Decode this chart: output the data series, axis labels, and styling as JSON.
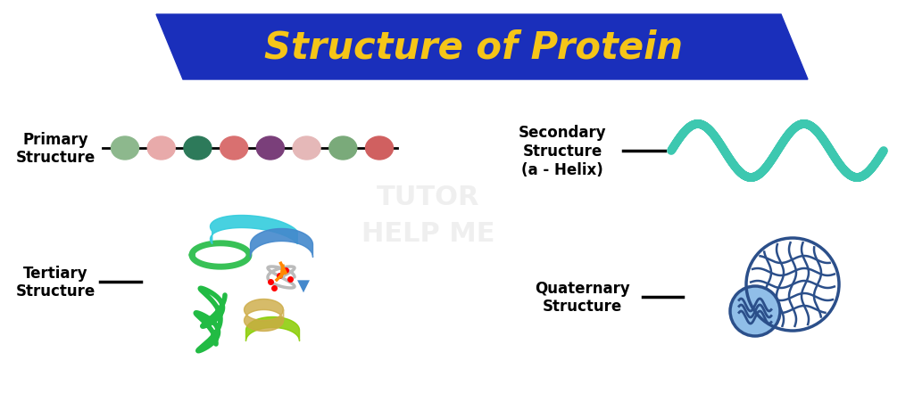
{
  "title": "Structure of Protein",
  "title_color": "#F5C518",
  "title_bg_color": "#1A2FBB",
  "background_color": "#FFFFFF",
  "primary_label": "Primary\nStructure",
  "secondary_label": "Secondary\nStructure\n(a - Helix)",
  "tertiary_label": "Tertiary\nStructure",
  "quaternary_label": "Quaternary\nStructure",
  "bead_colors": [
    "#8DB88D",
    "#E8AAAA",
    "#2D7A5A",
    "#D97070",
    "#7A3F7A",
    "#E5B8B8",
    "#7AAA7A",
    "#D06060"
  ],
  "helix_color": "#3DC8B0",
  "quaternary_circle_color": "#2B4F8A",
  "quaternary_fill_color": "#90BEE8",
  "label_fontsize": 12,
  "title_fontsize": 30
}
